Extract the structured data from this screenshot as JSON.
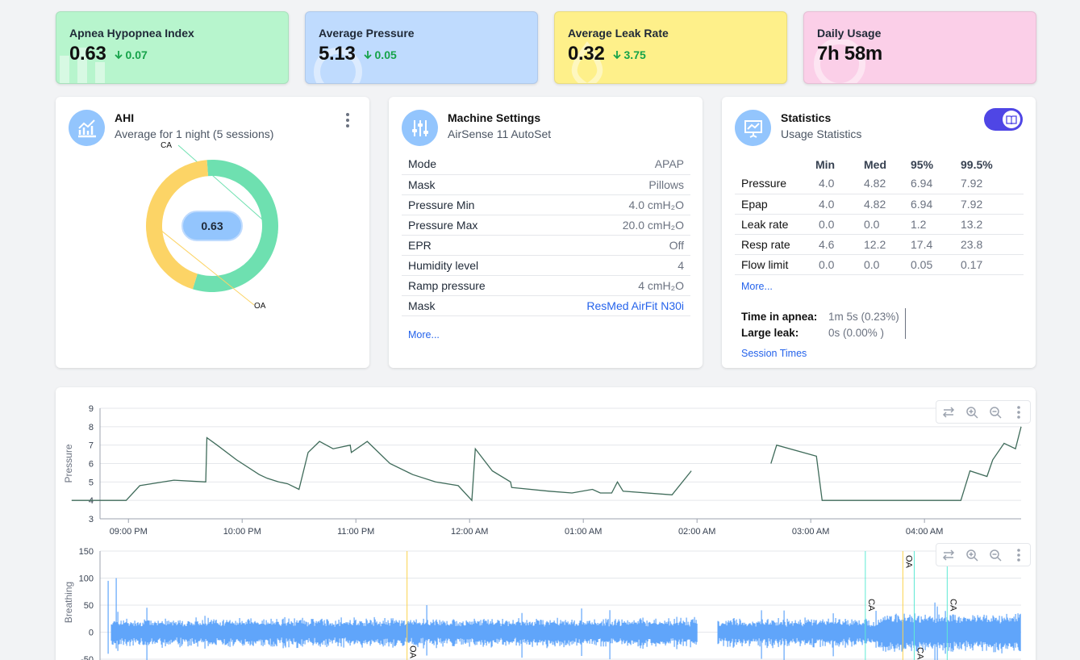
{
  "kpis": [
    {
      "title": "Apnea Hypopnea Index",
      "value": "0.63",
      "delta": "0.07",
      "bg": "#b7f5cd"
    },
    {
      "title": "Average Pressure",
      "value": "5.13",
      "delta": "0.05",
      "bg": "#bfdbfe"
    },
    {
      "title": "Average Leak Rate",
      "value": "0.32",
      "delta": "3.75",
      "bg": "#fef08a"
    },
    {
      "title": "Daily Usage",
      "value": "7h 58m",
      "bg": "#fbcfe8"
    }
  ],
  "ahi": {
    "title": "AHI",
    "subtitle": "Average for 1 night (5 sessions)",
    "center_value": "0.63",
    "slices": [
      {
        "label": "CA",
        "fraction": 0.56,
        "color": "#6ee0b0"
      },
      {
        "label": "OA",
        "fraction": 0.44,
        "color": "#fcd466"
      }
    ]
  },
  "machine": {
    "title": "Machine Settings",
    "subtitle": "AirSense 11 AutoSet",
    "rows": [
      {
        "label": "Mode",
        "value": "APAP"
      },
      {
        "label": "Mask",
        "value": "Pillows"
      },
      {
        "label": "Pressure Min",
        "value": "4.0 cmH₂O"
      },
      {
        "label": "Pressure Max",
        "value": "20.0 cmH₂O"
      },
      {
        "label": "EPR",
        "value": "Off"
      },
      {
        "label": "Humidity level",
        "value": "4"
      },
      {
        "label": "Ramp pressure",
        "value": "4 cmH₂O"
      },
      {
        "label": "Mask",
        "value": "ResMed AirFit N30i"
      }
    ],
    "more": "More..."
  },
  "stats": {
    "title": "Statistics",
    "subtitle": "Usage Statistics",
    "columns": [
      "Min",
      "Med",
      "95%",
      "99.5%"
    ],
    "rows": [
      {
        "label": "Pressure",
        "values": [
          "4.0",
          "4.82",
          "6.94",
          "7.92"
        ]
      },
      {
        "label": "Epap",
        "values": [
          "4.0",
          "4.82",
          "6.94",
          "7.92"
        ]
      },
      {
        "label": "Leak rate",
        "values": [
          "0.0",
          "0.0",
          "1.2",
          "13.2"
        ]
      },
      {
        "label": "Resp rate",
        "values": [
          "4.6",
          "12.2",
          "17.4",
          "23.8"
        ]
      },
      {
        "label": "Flow limit",
        "values": [
          "0.0",
          "0.0",
          "0.05",
          "0.17"
        ]
      }
    ],
    "more": "More...",
    "apnea_label": "Time in apnea:",
    "apnea_value": "1m 5s (0.23%)",
    "leak_label": "Large leak:",
    "leak_value": "0s (0.00% )",
    "session_times": "Session Times"
  },
  "chart_data": [
    {
      "type": "line",
      "ylabel": "Pressure",
      "ylim": [
        3,
        9
      ],
      "yticks": [
        "3",
        "4",
        "5",
        "6",
        "7",
        "8",
        "9"
      ],
      "xticks": [
        "09:00 PM",
        "10:00 PM",
        "11:00 PM",
        "12:00 AM",
        "01:00 AM",
        "02:00 AM",
        "03:00 AM",
        "04:00 AM"
      ],
      "x_hours_since_2030": [
        0.0,
        0.33,
        0.48,
        0.6,
        0.9,
        1.18,
        1.19,
        1.28,
        1.45,
        1.65,
        1.72,
        1.82,
        1.9,
        2.0,
        2.08,
        2.18,
        2.3,
        2.45,
        2.46,
        2.6,
        2.8,
        3.0,
        3.2,
        3.4,
        3.52,
        3.55,
        3.7,
        3.86,
        3.87,
        4.2,
        4.4,
        4.58,
        4.65,
        4.75,
        4.8,
        4.85,
        5.28,
        5.45,
        6.15,
        6.2,
        6.55,
        6.6,
        7.5,
        7.55,
        7.82,
        7.9,
        8.05,
        8.1,
        8.2,
        8.3,
        8.35
      ],
      "pressure": [
        4.0,
        4.0,
        4.0,
        4.8,
        5.1,
        5.0,
        7.4,
        7.0,
        6.2,
        5.4,
        5.2,
        5.0,
        4.9,
        4.6,
        6.6,
        7.2,
        6.8,
        7.0,
        6.6,
        7.2,
        6.0,
        5.4,
        5.0,
        4.8,
        4.0,
        6.8,
        5.6,
        5.0,
        4.7,
        4.5,
        4.4,
        4.6,
        4.4,
        4.4,
        5.0,
        4.5,
        4.3,
        5.6,
        6.0,
        7.0,
        6.4,
        4.0,
        4.0,
        4.0,
        4.0,
        5.6,
        5.3,
        6.2,
        7.1,
        6.8,
        8.0
      ]
    },
    {
      "type": "area",
      "ylabel": "Breathing",
      "ylim": [
        -50,
        150
      ],
      "yticks": [
        "150",
        "100",
        "50",
        "0",
        "-50"
      ],
      "events": [
        {
          "label": "OA",
          "hour": 2.87,
          "color": "#fcd34d"
        },
        {
          "label": "CA",
          "hour": 6.9,
          "color": "#5eead4"
        },
        {
          "label": "OA",
          "hour": 7.23,
          "color": "#fcd34d"
        },
        {
          "label": "CA",
          "hour": 7.33,
          "color": "#5eead4"
        },
        {
          "label": "CA",
          "hour": 7.62,
          "color": "#5eead4"
        }
      ]
    }
  ]
}
